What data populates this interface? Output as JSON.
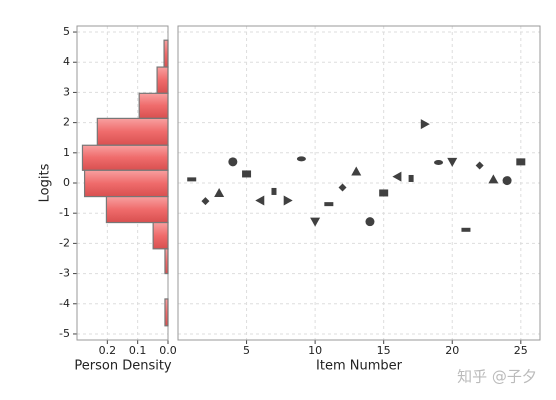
{
  "chart_data": [
    {
      "type": "histogram",
      "orientation": "horizontal",
      "xlabel": "Person Density",
      "ylabel": "Logits",
      "bins": [
        4.73,
        3.84,
        2.97,
        2.14,
        1.25,
        0.42,
        -0.45,
        -1.31,
        -2.18,
        -3.0,
        -3.84,
        -4.73
      ],
      "values": [
        0.013,
        0.036,
        0.095,
        0.233,
        0.282,
        0.275,
        0.203,
        0.049,
        0.01,
        0,
        0.01
      ],
      "color": "#ef6b6b",
      "xlim": [
        0.3,
        0
      ],
      "xticks": [
        0.2,
        0.1,
        {
          "value": 0,
          "label": "0.0"
        }
      ],
      "ylim": [
        -5.2,
        5.2
      ],
      "yticks": [
        -5,
        -4,
        -3,
        -2,
        -1,
        0,
        1,
        2,
        3,
        4,
        5
      ],
      "grid": true
    },
    {
      "type": "scatter",
      "xlabel": "Item Number",
      "x": [
        1,
        2,
        3,
        4,
        5,
        6,
        7,
        8,
        9,
        10,
        11,
        12,
        13,
        14,
        15,
        16,
        17,
        18,
        19,
        20,
        21,
        22,
        23,
        24,
        25
      ],
      "values": [
        0.12,
        -0.6,
        -0.33,
        0.7,
        0.3,
        -0.58,
        -0.28,
        -0.58,
        0.8,
        -1.28,
        -0.7,
        -0.15,
        0.38,
        -1.28,
        -0.33,
        0.21,
        0.15,
        1.95,
        0.68,
        0.7,
        -1.55,
        0.58,
        0.12,
        0.08,
        0.7
      ],
      "color": "#404040",
      "xlim": [
        0,
        26.4
      ],
      "xticks": [
        5,
        10,
        15,
        20,
        25
      ],
      "ylim": [
        -5.2,
        5.2
      ],
      "yticks": [
        -5,
        -4,
        -3,
        -2,
        -1,
        0,
        1,
        2,
        3,
        4,
        5
      ],
      "grid": true
    }
  ],
  "watermark": "知乎 @子夕"
}
